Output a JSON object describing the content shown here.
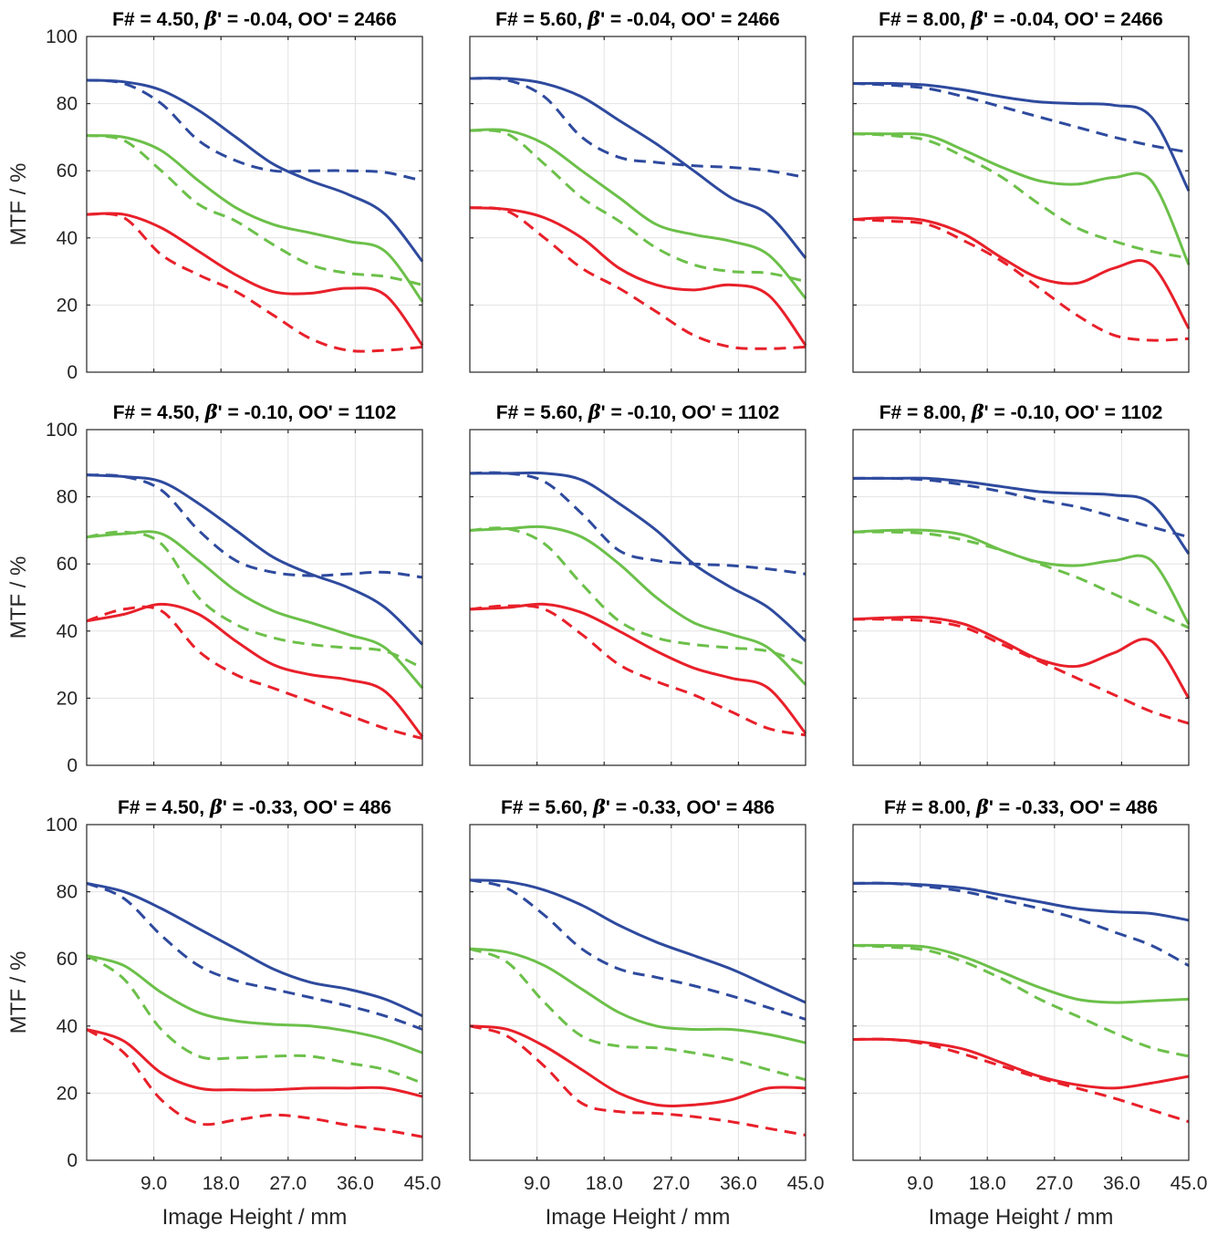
{
  "colors": {
    "blue": "#2E4A9E",
    "green": "#6CC04A",
    "red": "#E8202A",
    "axis": "#262626",
    "grid": "#E3E3E3"
  },
  "chart_data": {
    "type": "line",
    "layout": "3x3 grid of small multiples",
    "line_styles": {
      "solid": "solid line",
      "dashed": "dashed line"
    },
    "grid": true,
    "xlim": [
      0,
      45
    ],
    "ylim": [
      0,
      100
    ],
    "xticks": [
      "9.0",
      "18.0",
      "27.0",
      "36.0",
      "45.0"
    ],
    "yticks": [
      "0",
      "20",
      "40",
      "60",
      "80",
      "100"
    ],
    "xlabel": "Image Height / mm",
    "ylabel": "MTF / %",
    "x": [
      0,
      5,
      10,
      15,
      20,
      25,
      30,
      35,
      40,
      45
    ],
    "panels": [
      {
        "title_pre": "F# = 4.50, ",
        "beta_sym": "β",
        "title_post": "' = -0.04, OO' = 2466",
        "series": [
          {
            "color": "blue",
            "style": "solid",
            "values": [
              87,
              86.5,
              84,
              78,
              70,
              62,
              57,
              53,
              47,
              33
            ]
          },
          {
            "color": "blue",
            "style": "dashed",
            "values": [
              87,
              86,
              80,
              69,
              63,
              60,
              60,
              60,
              59.5,
              57
            ]
          },
          {
            "color": "green",
            "style": "solid",
            "values": [
              70.5,
              70,
              66,
              57,
              49,
              44,
              41.5,
              39,
              36,
              21
            ]
          },
          {
            "color": "green",
            "style": "dashed",
            "values": [
              70.5,
              69,
              60,
              50,
              45,
              38,
              32,
              29.5,
              28.5,
              26
            ]
          },
          {
            "color": "red",
            "style": "solid",
            "values": [
              47,
              47,
              43,
              36,
              29,
              24,
              23.5,
              25,
              23,
              8
            ]
          },
          {
            "color": "red",
            "style": "dashed",
            "values": [
              47,
              46,
              35,
              29,
              24,
              17,
              10,
              6.5,
              6.5,
              7.5
            ]
          }
        ]
      },
      {
        "title_pre": "F# = 5.60, ",
        "beta_sym": "β",
        "title_post": "' = -0.04, OO' = 2466",
        "series": [
          {
            "color": "blue",
            "style": "solid",
            "values": [
              87.5,
              87.5,
              86,
              82,
              75,
              68,
              60,
              52,
              47,
              34
            ]
          },
          {
            "color": "blue",
            "style": "dashed",
            "values": [
              87.5,
              87,
              82,
              70,
              64,
              62.5,
              61.5,
              61,
              60,
              58
            ]
          },
          {
            "color": "green",
            "style": "solid",
            "values": [
              72,
              72,
              68,
              60,
              52,
              44,
              41,
              39,
              35,
              22
            ]
          },
          {
            "color": "green",
            "style": "dashed",
            "values": [
              72,
              71,
              62,
              52,
              45,
              37,
              32,
              30,
              29.5,
              27
            ]
          },
          {
            "color": "red",
            "style": "solid",
            "values": [
              49,
              48.5,
              46,
              40,
              31,
              26,
              24.5,
              26,
              23,
              8
            ]
          },
          {
            "color": "red",
            "style": "dashed",
            "values": [
              49,
              48,
              40,
              31,
              25,
              18,
              11,
              7.5,
              7,
              7.5
            ]
          }
        ]
      },
      {
        "title_pre": "F# = 8.00, ",
        "beta_sym": "β",
        "title_post": "' = -0.04, OO' = 2466",
        "series": [
          {
            "color": "blue",
            "style": "solid",
            "values": [
              86,
              86,
              85.5,
              84,
              82,
              80.5,
              80,
              79.5,
              76,
              54
            ]
          },
          {
            "color": "blue",
            "style": "dashed",
            "values": [
              86,
              85.5,
              84.5,
              82,
              79,
              76,
              73,
              70,
              67.5,
              65.5
            ]
          },
          {
            "color": "green",
            "style": "solid",
            "values": [
              71,
              71,
              70.5,
              66,
              61,
              57,
              56,
              58,
              57,
              32
            ]
          },
          {
            "color": "green",
            "style": "dashed",
            "values": [
              71,
              70.5,
              69,
              64,
              58,
              50,
              43,
              39,
              36,
              34
            ]
          },
          {
            "color": "red",
            "style": "solid",
            "values": [
              45.5,
              46,
              45,
              41,
              34,
              28,
              26.5,
              31,
              32,
              13
            ]
          },
          {
            "color": "red",
            "style": "dashed",
            "values": [
              45.5,
              45,
              44,
              39,
              33,
              25,
              17,
              11,
              9.5,
              10
            ]
          }
        ]
      },
      {
        "title_pre": "F# = 4.50, ",
        "beta_sym": "β",
        "title_post": "' = -0.10, OO' = 1102",
        "series": [
          {
            "color": "blue",
            "style": "solid",
            "values": [
              86.5,
              86,
              84.5,
              78,
              70,
              62,
              57,
              53,
              47,
              36
            ]
          },
          {
            "color": "blue",
            "style": "dashed",
            "values": [
              86.5,
              86,
              82,
              70,
              61,
              57.5,
              56.5,
              57,
              57.5,
              56
            ]
          },
          {
            "color": "green",
            "style": "solid",
            "values": [
              68,
              69,
              69,
              61,
              52,
              46,
              42.5,
              39,
              35,
              23
            ]
          },
          {
            "color": "green",
            "style": "dashed",
            "values": [
              68,
              69.5,
              66,
              50,
              42,
              38,
              36,
              35,
              34,
              29
            ]
          },
          {
            "color": "red",
            "style": "solid",
            "values": [
              43,
              45,
              48,
              45,
              37,
              30,
              27,
              25.5,
              22,
              8.5
            ]
          },
          {
            "color": "red",
            "style": "dashed",
            "values": [
              43,
              46.5,
              46,
              34,
              27,
              23,
              19,
              15,
              11,
              8
            ]
          }
        ]
      },
      {
        "title_pre": "F# = 5.60, ",
        "beta_sym": "β",
        "title_post": "' = -0.10, OO' = 1102",
        "series": [
          {
            "color": "blue",
            "style": "solid",
            "values": [
              87,
              87,
              87,
              85,
              78,
              70,
              60,
              53,
              47,
              37
            ]
          },
          {
            "color": "blue",
            "style": "dashed",
            "values": [
              87,
              87,
              84.5,
              75,
              64,
              61,
              60,
              59.5,
              58.5,
              57
            ]
          },
          {
            "color": "green",
            "style": "solid",
            "values": [
              70,
              70.5,
              71,
              68,
              60,
              50,
              42.5,
              39,
              35,
              24
            ]
          },
          {
            "color": "green",
            "style": "dashed",
            "values": [
              70,
              70.5,
              66,
              54,
              43,
              38,
              36,
              35,
              34,
              30
            ]
          },
          {
            "color": "red",
            "style": "solid",
            "values": [
              46.5,
              47,
              48,
              45.5,
              40,
              34,
              29,
              26,
              23,
              9.5
            ]
          },
          {
            "color": "red",
            "style": "dashed",
            "values": [
              46.5,
              47.5,
              46.5,
              39,
              30,
              25,
              21,
              16,
              11,
              9
            ]
          }
        ]
      },
      {
        "title_pre": "F# = 8.00, ",
        "beta_sym": "β",
        "title_post": "' = -0.10, OO' = 1102",
        "series": [
          {
            "color": "blue",
            "style": "solid",
            "values": [
              85.5,
              85.5,
              85.5,
              84.5,
              83,
              81.5,
              81,
              80.5,
              78,
              63
            ]
          },
          {
            "color": "blue",
            "style": "dashed",
            "values": [
              85.5,
              85.5,
              85,
              83.5,
              81.5,
              79,
              77,
              74,
              71,
              68
            ]
          },
          {
            "color": "green",
            "style": "solid",
            "values": [
              69.5,
              70,
              70,
              68.5,
              64,
              60.5,
              59.5,
              61,
              61,
              42
            ]
          },
          {
            "color": "green",
            "style": "dashed",
            "values": [
              69.5,
              69.5,
              69,
              67,
              64,
              60,
              56,
              51,
              46,
              41
            ]
          },
          {
            "color": "red",
            "style": "solid",
            "values": [
              43.5,
              44,
              44,
              42,
              37,
              31.5,
              29.5,
              33.5,
              37,
              20
            ]
          },
          {
            "color": "red",
            "style": "dashed",
            "values": [
              43.5,
              43.5,
              43,
              41,
              36,
              31,
              26,
              21,
              16,
              12.5
            ]
          }
        ]
      },
      {
        "title_pre": "F# = 4.50, ",
        "beta_sym": "β",
        "title_post": "' = -0.33, OO' = 486",
        "series": [
          {
            "color": "blue",
            "style": "solid",
            "values": [
              82.5,
              80,
              75,
              69,
              63,
              57,
              53,
              51,
              48,
              43
            ]
          },
          {
            "color": "blue",
            "style": "dashed",
            "values": [
              82.5,
              78,
              67,
              58,
              53.5,
              51,
              48.5,
              46,
              43,
              39
            ]
          },
          {
            "color": "green",
            "style": "solid",
            "values": [
              61,
              58,
              50,
              44,
              41.5,
              40.5,
              40,
              38.5,
              36,
              32
            ]
          },
          {
            "color": "green",
            "style": "dashed",
            "values": [
              61,
              54,
              39,
              31,
              30.5,
              31,
              31,
              29,
              27,
              23
            ]
          },
          {
            "color": "red",
            "style": "solid",
            "values": [
              39,
              35.5,
              26,
              21.5,
              21,
              21,
              21.5,
              21.5,
              21.5,
              19
            ]
          },
          {
            "color": "red",
            "style": "dashed",
            "values": [
              39,
              32,
              18,
              11,
              12,
              13.5,
              12.5,
              10.5,
              9,
              7
            ]
          }
        ]
      },
      {
        "title_pre": "F# = 5.60, ",
        "beta_sym": "β",
        "title_post": "' = -0.33, OO' = 486",
        "series": [
          {
            "color": "blue",
            "style": "solid",
            "values": [
              83.5,
              83,
              80.5,
              76,
              70,
              65,
              61,
              57,
              52,
              47
            ]
          },
          {
            "color": "blue",
            "style": "dashed",
            "values": [
              83.5,
              81,
              73,
              63,
              57,
              54.5,
              52,
              49,
              45.5,
              42
            ]
          },
          {
            "color": "green",
            "style": "solid",
            "values": [
              63,
              62,
              58,
              51,
              44,
              40,
              39,
              39,
              37.5,
              35
            ]
          },
          {
            "color": "green",
            "style": "dashed",
            "values": [
              63,
              59,
              47,
              37,
              34,
              33.5,
              32,
              30,
              27,
              24
            ]
          },
          {
            "color": "red",
            "style": "solid",
            "values": [
              40,
              39,
              34,
              27,
              20,
              16.5,
              16.5,
              18,
              21.5,
              21.5
            ]
          },
          {
            "color": "red",
            "style": "dashed",
            "values": [
              40,
              37,
              28,
              17,
              14.5,
              14,
              13,
              11.5,
              9.5,
              7.5
            ]
          }
        ]
      },
      {
        "title_pre": "F# = 8.00, ",
        "beta_sym": "β",
        "title_post": "' = -0.33, OO' = 486",
        "series": [
          {
            "color": "blue",
            "style": "solid",
            "values": [
              82.5,
              82.5,
              82,
              81,
              79,
              77,
              75,
              74,
              73.5,
              71.5
            ]
          },
          {
            "color": "blue",
            "style": "dashed",
            "values": [
              82.5,
              82.5,
              81.5,
              80,
              77.5,
              75,
              72,
              68,
              64,
              58
            ]
          },
          {
            "color": "green",
            "style": "solid",
            "values": [
              64,
              64,
              63.5,
              60.5,
              56,
              51.5,
              48,
              47,
              47.5,
              48
            ]
          },
          {
            "color": "green",
            "style": "dashed",
            "values": [
              64,
              63.5,
              62.5,
              59,
              54,
              48,
              43,
              38,
              33.5,
              31
            ]
          },
          {
            "color": "red",
            "style": "solid",
            "values": [
              36,
              36,
              35,
              33,
              29,
              25,
              22.5,
              21.5,
              23,
              25
            ]
          },
          {
            "color": "red",
            "style": "dashed",
            "values": [
              36,
              36,
              34.5,
              31.5,
              28,
              24.5,
              21.5,
              18.5,
              15,
              11.5
            ]
          }
        ]
      }
    ]
  }
}
